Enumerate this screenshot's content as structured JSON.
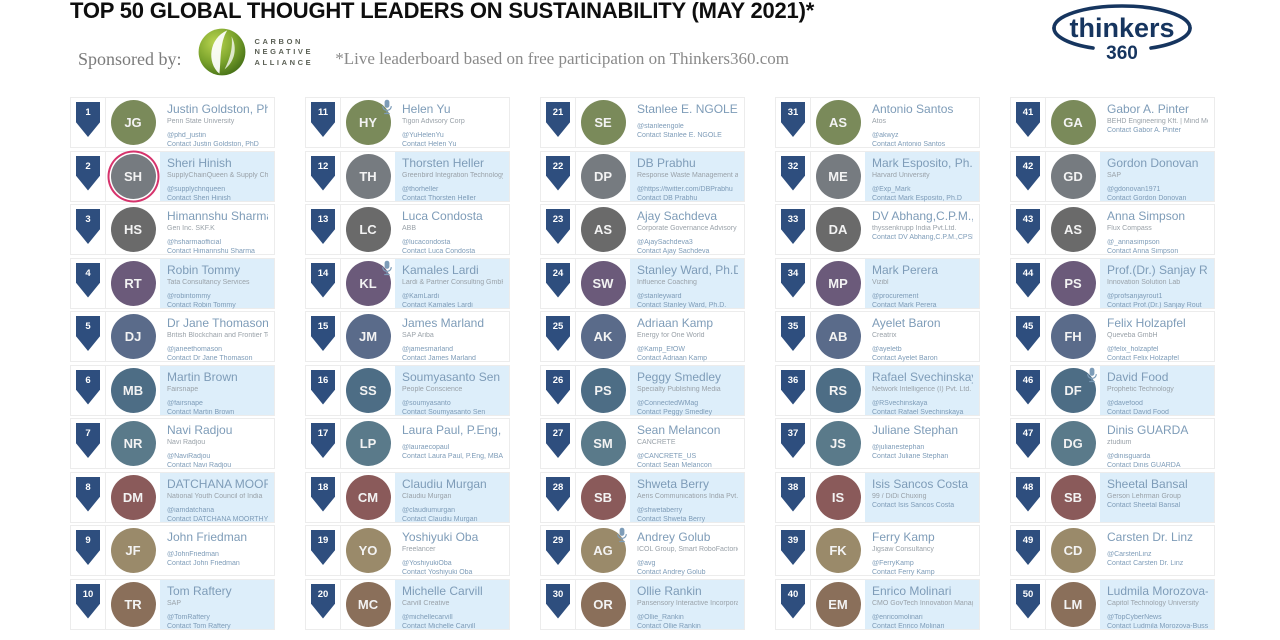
{
  "header": {
    "title": "TOP 50 GLOBAL THOUGHT LEADERS ON SUSTAINABILITY (MAY 2021)*",
    "sponsored_by_label": "Sponsored by:",
    "sponsor_logo": {
      "line1": "CARBON",
      "line2": "NEGATIVE",
      "line3": "ALLIANCE"
    },
    "note": "*Live leaderboard based on free participation on Thinkers360.com",
    "brand": {
      "name": "thinkers",
      "suffix": "360"
    }
  },
  "colors": {
    "badge_navy": "#2e4e7e",
    "row_highlight": "#ddeefa",
    "name_blue": "#7e9cb8",
    "brand_navy": "#16355f",
    "sponsor_green": "#6a9a2f",
    "ring_pink": "#d6336c"
  },
  "leaderboard": {
    "entries": [
      {
        "rank": 1,
        "name": "Justin Goldston, PhD",
        "company": "Penn State University",
        "handle": "@phd_justin",
        "contact": "Contact Justin Goldston, PhD"
      },
      {
        "rank": 2,
        "name": "Sheri Hinish",
        "company": "SupplyChainQueen & Supply Chain Revolution Podcast",
        "handle": "@supplychnqueen",
        "contact": "Contact Sheri Hinish",
        "ring": "#d6336c"
      },
      {
        "rank": 3,
        "name": "Himannshu Sharma",
        "company": "Gen Inc. SKF.K",
        "handle": "@hsharmaofficial",
        "contact": "Contact Himannshu Sharma"
      },
      {
        "rank": 4,
        "name": "Robin Tommy",
        "company": "Tata Consultancy Services",
        "handle": "@robintommy",
        "contact": "Contact Robin Tommy"
      },
      {
        "rank": 5,
        "name": "Dr Jane Thomason",
        "company": "British Blockchain and Frontier Technology Association",
        "handle": "@janeethomason",
        "contact": "Contact Dr Jane Thomason"
      },
      {
        "rank": 6,
        "name": "Martin Brown",
        "company": "Fairsnape",
        "handle": "@fairsnape",
        "contact": "Contact Martin Brown"
      },
      {
        "rank": 7,
        "name": "Navi Radjou",
        "company": "Navi Radjou",
        "handle": "@NaviRadjou",
        "contact": "Contact Navi Radjou"
      },
      {
        "rank": 8,
        "name": "DATCHANA MOORTHY RAMU",
        "company": "National Youth Council of India",
        "handle": "@iamdatchana",
        "contact": "Contact DATCHANA MOORTHY RAMU"
      },
      {
        "rank": 9,
        "name": "John Friedman",
        "company": "",
        "handle": "@JohnFriedman",
        "contact": "Contact John Friedman"
      },
      {
        "rank": 10,
        "name": "Tom Raftery",
        "company": "SAP",
        "handle": "@TomRaftery",
        "contact": "Contact Tom Raftery"
      },
      {
        "rank": 11,
        "name": "Helen Yu",
        "company": "Tigon Advisory Corp",
        "handle": "@YuHelenYu",
        "contact": "Contact Helen Yu",
        "mic": true
      },
      {
        "rank": 12,
        "name": "Thorsten Heller",
        "company": "Greenbird Integration Technology",
        "handle": "@thorheller",
        "contact": "Contact Thorsten Heller"
      },
      {
        "rank": 13,
        "name": "Luca Condosta",
        "company": "ABB",
        "handle": "@lucacondosta",
        "contact": "Contact Luca Condosta"
      },
      {
        "rank": 14,
        "name": "Kamales Lardi",
        "company": "Lardi & Partner Consulting GmbH",
        "handle": "@KamLardi",
        "contact": "Contact Kamales Lardi",
        "mic": true
      },
      {
        "rank": 15,
        "name": "James Marland",
        "company": "SAP Ariba",
        "handle": "@jamesmarland",
        "contact": "Contact James Marland"
      },
      {
        "rank": 16,
        "name": "Soumyasanto Sen",
        "company": "People Conscience",
        "handle": "@soumyasanto",
        "contact": "Contact Soumyasanto Sen"
      },
      {
        "rank": 17,
        "name": "Laura Paul, P.Eng, MBA, PMP",
        "company": "",
        "handle": "@lauraecopaul",
        "contact": "Contact Laura Paul, P.Eng, MBA, PMP"
      },
      {
        "rank": 18,
        "name": "Claudiu Murgan",
        "company": "Claudiu Murgan",
        "handle": "@claudiumurgan",
        "contact": "Contact Claudiu Murgan"
      },
      {
        "rank": 19,
        "name": "Yoshiyuki Oba",
        "company": "Freelancer",
        "handle": "@YoshiyukiOba",
        "contact": "Contact Yoshiyuki Oba"
      },
      {
        "rank": 20,
        "name": "Michelle Carvill",
        "company": "Carvill Creative",
        "handle": "@michellecarvill",
        "contact": "Contact Michelle Carvill"
      },
      {
        "rank": 21,
        "name": "Stanlee E. NGOLE",
        "company": "",
        "handle": "@stanleengole",
        "contact": "Contact Stanlee E. NGOLE"
      },
      {
        "rank": 22,
        "name": "DB Prabhu",
        "company": "Response Waste Management and Research Pvt Ltd",
        "handle": "@https://twitter.com/DBPrabhu",
        "contact": "Contact DB Prabhu"
      },
      {
        "rank": 23,
        "name": "Ajay Sachdeva",
        "company": "Corporate Governance Advisory Services",
        "handle": "@AjaySachdeva3",
        "contact": "Contact Ajay Sachdeva"
      },
      {
        "rank": 24,
        "name": "Stanley Ward, Ph.D.",
        "company": "Influence Coaching",
        "handle": "@stanleyward",
        "contact": "Contact Stanley Ward, Ph.D."
      },
      {
        "rank": 25,
        "name": "Adriaan Kamp",
        "company": "Energy for One World",
        "handle": "@Kamp_EfOW",
        "contact": "Contact Adriaan Kamp"
      },
      {
        "rank": 26,
        "name": "Peggy Smedley",
        "company": "Specialty Publishing Media",
        "handle": "@ConnectedWMag",
        "contact": "Contact Peggy Smedley"
      },
      {
        "rank": 27,
        "name": "Sean Melancon",
        "company": "CANCRETE",
        "handle": "@CANCRETE_US",
        "contact": "Contact Sean Melancon"
      },
      {
        "rank": 28,
        "name": "Shweta Berry",
        "company": "Aeris Communications India Pvt. Ltd",
        "handle": "@shwetaberry",
        "contact": "Contact Shweta Berry"
      },
      {
        "rank": 29,
        "name": "Andrey Golub",
        "company": "ICOL Group, Smart RoboFactories & Digital Ecosystems",
        "handle": "@avg",
        "contact": "Contact Andrey Golub",
        "mic": true
      },
      {
        "rank": 30,
        "name": "Ollie Rankin",
        "company": "Pansensory Interactive Incorporated",
        "handle": "@Ollie_Rankin",
        "contact": "Contact Ollie Rankin"
      },
      {
        "rank": 31,
        "name": "Antonio Santos",
        "company": "Atos",
        "handle": "@akwyz",
        "contact": "Contact Antonio Santos"
      },
      {
        "rank": 32,
        "name": "Mark Esposito, Ph.D",
        "company": "Harvard University",
        "handle": "@Exp_Mark",
        "contact": "Contact Mark Esposito, Ph.D"
      },
      {
        "rank": 33,
        "name": "DV Abhang,C.P.M.,CPSM",
        "company": "thyssenkrupp India Pvt.Ltd.",
        "handle": "",
        "contact": "Contact DV Abhang,C.P.M.,CPSM"
      },
      {
        "rank": 34,
        "name": "Mark Perera",
        "company": "Vizibl",
        "handle": "@procurement",
        "contact": "Contact Mark Perera"
      },
      {
        "rank": 35,
        "name": "Ayelet Baron",
        "company": "Creatrix",
        "handle": "@ayeletb",
        "contact": "Contact Ayelet Baron"
      },
      {
        "rank": 36,
        "name": "Rafael Svechinskaya",
        "company": "Network Intelligence (I) Pvt. Ltd.",
        "handle": "@RSvechinskaya",
        "contact": "Contact Rafael Svechinskaya"
      },
      {
        "rank": 37,
        "name": "Juliane Stephan",
        "company": "",
        "handle": "@julianestephan",
        "contact": "Contact Juliane Stephan"
      },
      {
        "rank": 38,
        "name": "Isis Sancos Costa",
        "company": "99 / DiDi Chuxing",
        "handle": "",
        "contact": "Contact Isis Sancos Costa"
      },
      {
        "rank": 39,
        "name": "Ferry Kamp",
        "company": "Jigsaw Consultancy",
        "handle": "@FerryKamp",
        "contact": "Contact Ferry Kamp"
      },
      {
        "rank": 40,
        "name": "Enrico Molinari",
        "company": "CMO GovTech Innovation Manager | University Professor",
        "handle": "@enricomolinari",
        "contact": "Contact Enrico Molinari"
      },
      {
        "rank": 41,
        "name": "Gabor A. Pinter",
        "company": "BEHD Engineering Kft. | Mind Mese Inspiration co",
        "handle": "",
        "contact": "Contact Gabor A. Pinter"
      },
      {
        "rank": 42,
        "name": "Gordon Donovan",
        "company": "SAP",
        "handle": "@gdonovan1971",
        "contact": "Contact Gordon Donovan"
      },
      {
        "rank": 43,
        "name": "Anna Simpson",
        "company": "Flux Compass",
        "handle": "@_annasimpson",
        "contact": "Contact Anna Simpson"
      },
      {
        "rank": 44,
        "name": "Prof.(Dr.) Sanjay Rout",
        "company": "Innovation Solution Lab",
        "handle": "@profsanjayrout1",
        "contact": "Contact Prof.(Dr.) Sanjay Rout"
      },
      {
        "rank": 45,
        "name": "Felix Holzapfel",
        "company": "Queveba GmbH",
        "handle": "@felix_holzapfel",
        "contact": "Contact Felix Holzapfel"
      },
      {
        "rank": 46,
        "name": "David Food",
        "company": "Prophetic Technology",
        "handle": "@davefood",
        "contact": "Contact David Food",
        "mic": true
      },
      {
        "rank": 47,
        "name": "Dinis GUARDA",
        "company": "ztudium",
        "handle": "@dinisguarda",
        "contact": "Contact Dinis GUARDA"
      },
      {
        "rank": 48,
        "name": "Sheetal Bansal",
        "company": "Gerson Lehrman Group",
        "handle": "",
        "contact": "Contact Sheetal Bansal"
      },
      {
        "rank": 49,
        "name": "Carsten Dr. Linz",
        "company": "",
        "handle": "@CarstenLinz",
        "contact": "Contact Carsten Dr. Linz"
      },
      {
        "rank": 50,
        "name": "Ludmila Morozova-Buss",
        "company": "Capitol Technology University",
        "handle": "@TopCyberNews",
        "contact": "Contact Ludmila Morozova-Buss"
      }
    ]
  }
}
